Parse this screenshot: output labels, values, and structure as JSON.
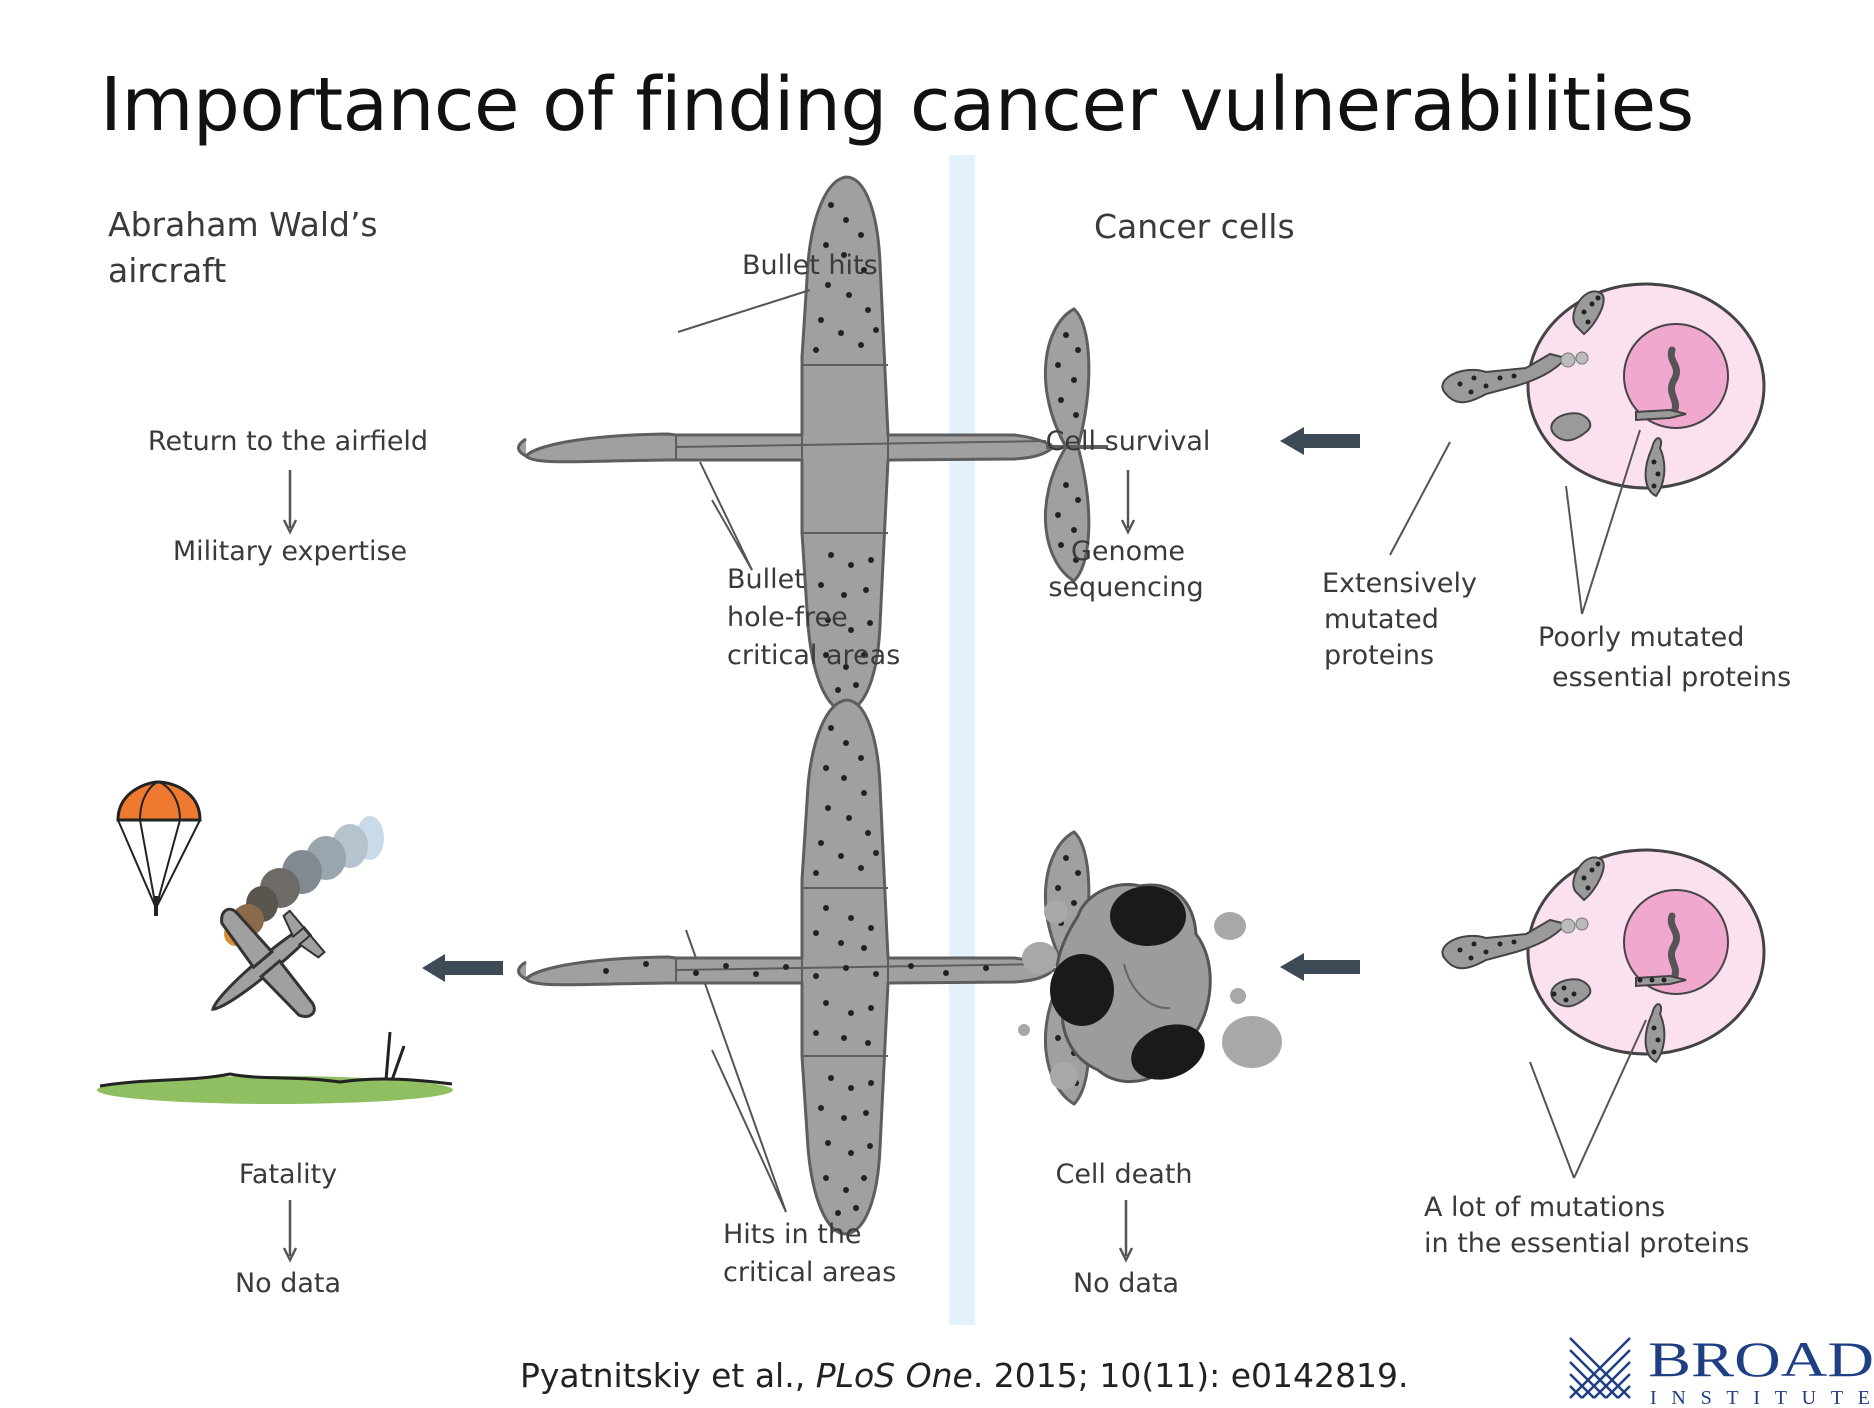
{
  "title": "Importance of finding cancer vulnerabilities",
  "left_panel": {
    "heading_line1": "Abraham Wald’s",
    "heading_line2": "aircraft",
    "survive_top": "Return to the airfield",
    "survive_bottom": "Military expertise",
    "bullet_hits": "Bullet hits",
    "holefree_1": "Bullet",
    "holefree_2": "hole-free",
    "holefree_3": "critical areas",
    "fatal_top": "Fatality",
    "fatal_bottom": "No data",
    "hits_1": "Hits in the",
    "hits_2": "critical areas"
  },
  "right_panel": {
    "heading": "Cancer cells",
    "survive_top": "Cell survival",
    "survive_bottom_1": "Genome",
    "survive_bottom_2": "sequencing",
    "extensive_1": "Extensively",
    "extensive_2": "mutated",
    "extensive_3": "proteins",
    "poorly_1": "Poorly mutated",
    "poorly_2": "essential proteins",
    "death_top": "Cell death",
    "death_bottom": "No data",
    "lot_1": "A lot of mutations",
    "lot_2": "in the essential proteins"
  },
  "citation": {
    "authors": "Pyatnitskiy et al., ",
    "journal": "PLoS One",
    "rest": ". 2015; 10(11): e0142819."
  },
  "logo": {
    "name": "BROAD",
    "sub": "INSTITUTE"
  },
  "colors": {
    "plane": "#a0a0a0",
    "cell": "#fbe1ef",
    "nucleus": "#f0a8cf",
    "divider": "#e3f2fc",
    "parachute": "#ef7a2f",
    "ground": "#8fbf60",
    "logo": "#1f3f85"
  }
}
